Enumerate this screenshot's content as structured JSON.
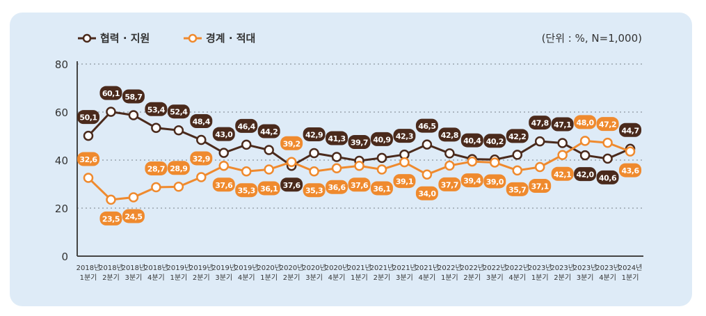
{
  "chart_data": {
    "type": "line",
    "unit_note": "(단위 : %, N=1,000)",
    "ylim": [
      0,
      80
    ],
    "yticks": [
      "0",
      "20",
      "40",
      "60",
      "80"
    ],
    "grid": true,
    "legend_placement": "top-left",
    "categories": [
      [
        "2018년",
        "1분기"
      ],
      [
        "2018년",
        "2분기"
      ],
      [
        "2018년",
        "3분기"
      ],
      [
        "2018년",
        "4분기"
      ],
      [
        "2019년",
        "1분기"
      ],
      [
        "2019년",
        "2분기"
      ],
      [
        "2019년",
        "3분기"
      ],
      [
        "2019년",
        "4분기"
      ],
      [
        "2020년",
        "1분기"
      ],
      [
        "2020년",
        "2분기"
      ],
      [
        "2020년",
        "3분기"
      ],
      [
        "2020년",
        "4분기"
      ],
      [
        "2021년",
        "1분기"
      ],
      [
        "2021년",
        "2분기"
      ],
      [
        "2021년",
        "3분기"
      ],
      [
        "2021년",
        "4분기"
      ],
      [
        "2022년",
        "1분기"
      ],
      [
        "2022년",
        "2분기"
      ],
      [
        "2022년",
        "3분기"
      ],
      [
        "2022년",
        "4분기"
      ],
      [
        "2023년",
        "1분기"
      ],
      [
        "2023년",
        "2분기"
      ],
      [
        "2023년",
        "3분기"
      ],
      [
        "2023년",
        "4분기"
      ],
      [
        "2024년",
        "1분기"
      ]
    ],
    "series": [
      {
        "name": "협력 · 지원",
        "color": "#4a2a1c",
        "values": [
          50.1,
          60.1,
          58.7,
          53.4,
          52.4,
          48.4,
          43.0,
          46.4,
          44.2,
          37.6,
          42.9,
          41.3,
          39.7,
          40.9,
          42.3,
          46.5,
          42.8,
          40.4,
          40.2,
          42.2,
          47.8,
          47.1,
          42.0,
          40.6,
          44.7
        ],
        "label_side": [
          "above",
          "above",
          "above",
          "above",
          "above",
          "above",
          "above",
          "above",
          "above",
          "below",
          "above",
          "above",
          "above",
          "above",
          "above",
          "above",
          "above",
          "above",
          "above",
          "above",
          "above",
          "above",
          "below",
          "below",
          "above"
        ]
      },
      {
        "name": "경계 · 적대",
        "color": "#ef8a2e",
        "values": [
          32.6,
          23.5,
          24.5,
          28.7,
          28.9,
          32.9,
          37.6,
          35.3,
          36.1,
          39.2,
          35.3,
          36.6,
          37.6,
          36.1,
          39.1,
          34.0,
          37.7,
          39.4,
          39.0,
          35.7,
          37.1,
          42.1,
          48.0,
          47.2,
          43.6
        ],
        "label_side": [
          "above",
          "below",
          "below",
          "above",
          "above",
          "above",
          "below",
          "below",
          "below",
          "above",
          "below",
          "below",
          "below",
          "below",
          "below",
          "below",
          "below",
          "below",
          "below",
          "below",
          "below",
          "below",
          "above",
          "above",
          "below"
        ]
      }
    ]
  }
}
